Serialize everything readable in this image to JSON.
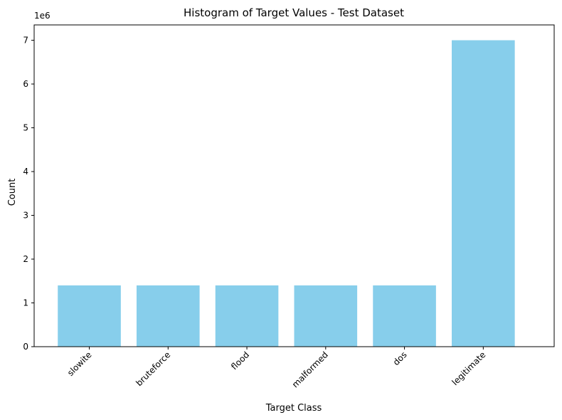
{
  "chart_data": {
    "type": "bar",
    "title": "Histogram of Target Values - Test Dataset",
    "xlabel": "Target Class",
    "ylabel": "Count",
    "offset_label": "1e6",
    "categories": [
      "slowite",
      "bruteforce",
      "flood",
      "malformed",
      "dos",
      "legitimate"
    ],
    "values": [
      1400000,
      1400000,
      1400000,
      1400000,
      1400000,
      7000000
    ],
    "ylim": [
      0,
      7350000
    ],
    "yticks": [
      0,
      1000000,
      2000000,
      3000000,
      4000000,
      5000000,
      6000000,
      7000000
    ],
    "ytick_labels": [
      "0",
      "1",
      "2",
      "3",
      "4",
      "5",
      "6",
      "7"
    ],
    "xtick_rotation_deg": 45,
    "bar_color": "#87CEEB",
    "grid": false,
    "legend": "none"
  }
}
